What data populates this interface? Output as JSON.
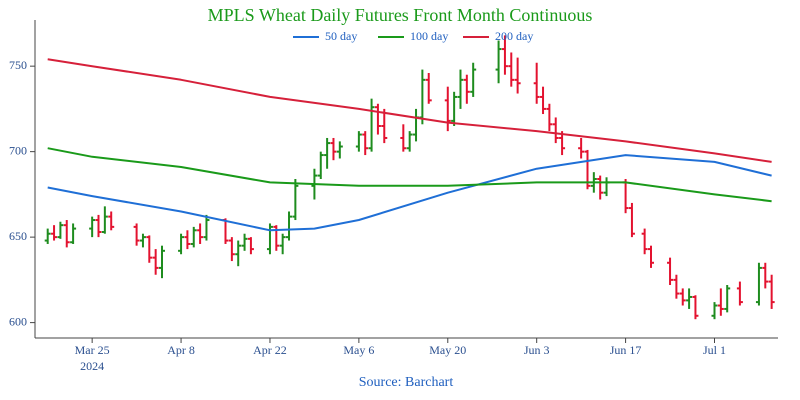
{
  "chart_data": {
    "type": "ohlc",
    "title": "MPLS Wheat Daily Futures Front Month Continuous",
    "source": "Source: Barchart",
    "increasing_color": "#1e8c1e",
    "decreasing_color": "#e3122f",
    "x": [
      "2024-03-18",
      "2024-03-19",
      "2024-03-20",
      "2024-03-21",
      "2024-03-22",
      "2024-03-25",
      "2024-03-26",
      "2024-03-27",
      "2024-03-28",
      "2024-04-01",
      "2024-04-02",
      "2024-04-03",
      "2024-04-04",
      "2024-04-05",
      "2024-04-08",
      "2024-04-09",
      "2024-04-10",
      "2024-04-11",
      "2024-04-12",
      "2024-04-15",
      "2024-04-16",
      "2024-04-17",
      "2024-04-18",
      "2024-04-19",
      "2024-04-22",
      "2024-04-23",
      "2024-04-24",
      "2024-04-25",
      "2024-04-26",
      "2024-04-29",
      "2024-04-30",
      "2024-05-01",
      "2024-05-02",
      "2024-05-03",
      "2024-05-06",
      "2024-05-07",
      "2024-05-08",
      "2024-05-09",
      "2024-05-10",
      "2024-05-13",
      "2024-05-14",
      "2024-05-15",
      "2024-05-16",
      "2024-05-17",
      "2024-05-20",
      "2024-05-21",
      "2024-05-22",
      "2024-05-23",
      "2024-05-24",
      "2024-05-28",
      "2024-05-29",
      "2024-05-30",
      "2024-05-31",
      "2024-06-03",
      "2024-06-04",
      "2024-06-05",
      "2024-06-06",
      "2024-06-07",
      "2024-06-10",
      "2024-06-11",
      "2024-06-12",
      "2024-06-13",
      "2024-06-14",
      "2024-06-17",
      "2024-06-18",
      "2024-06-20",
      "2024-06-21",
      "2024-06-24",
      "2024-06-25",
      "2024-06-26",
      "2024-06-27",
      "2024-06-28",
      "2024-07-01",
      "2024-07-02",
      "2024-07-03",
      "2024-07-05",
      "2024-07-08",
      "2024-07-09",
      "2024-07-10"
    ],
    "open": [
      648,
      652,
      650,
      657,
      647,
      655,
      660,
      653,
      662,
      656,
      648,
      650,
      638,
      632,
      642,
      650,
      646,
      654,
      650,
      660,
      648,
      640,
      645,
      649,
      643,
      656,
      645,
      650,
      662,
      680,
      686,
      698,
      705,
      700,
      703,
      710,
      702,
      726,
      715,
      708,
      702,
      710,
      720,
      742,
      730,
      718,
      732,
      742,
      735,
      748,
      760,
      750,
      742,
      740,
      732,
      725,
      716,
      708,
      702,
      700,
      680,
      684,
      676,
      682,
      667,
      652,
      643,
      635,
      625,
      617,
      613,
      615,
      604,
      610,
      608,
      620,
      612,
      632,
      624
    ],
    "high": [
      655,
      657,
      659,
      660,
      658,
      662,
      663,
      668,
      665,
      658,
      652,
      651,
      643,
      645,
      652,
      654,
      656,
      658,
      663,
      661,
      650,
      648,
      652,
      650,
      658,
      657,
      652,
      665,
      684,
      690,
      700,
      708,
      708,
      706,
      712,
      712,
      731,
      728,
      725,
      716,
      712,
      725,
      748,
      746,
      738,
      735,
      748,
      745,
      752,
      765,
      768,
      758,
      755,
      752,
      738,
      728,
      720,
      712,
      708,
      701,
      688,
      686,
      685,
      684,
      670,
      655,
      645,
      638,
      628,
      620,
      620,
      616,
      612,
      620,
      622,
      624,
      635,
      635,
      628
    ],
    "low": [
      646,
      648,
      649,
      644,
      646,
      650,
      650,
      652,
      654,
      645,
      644,
      635,
      628,
      626,
      640,
      643,
      644,
      646,
      648,
      646,
      636,
      633,
      642,
      640,
      640,
      642,
      640,
      648,
      660,
      672,
      684,
      690,
      695,
      696,
      700,
      698,
      700,
      710,
      705,
      700,
      700,
      706,
      716,
      728,
      712,
      715,
      725,
      728,
      732,
      740,
      745,
      738,
      734,
      728,
      722,
      712,
      705,
      698,
      696,
      678,
      676,
      672,
      674,
      664,
      650,
      640,
      632,
      622,
      614,
      610,
      608,
      602,
      602,
      604,
      606,
      610,
      610,
      620,
      608
    ],
    "close": [
      652,
      650,
      657,
      647,
      655,
      660,
      653,
      662,
      656,
      648,
      650,
      638,
      632,
      642,
      650,
      646,
      654,
      650,
      660,
      648,
      640,
      645,
      649,
      643,
      656,
      645,
      650,
      662,
      680,
      686,
      698,
      705,
      700,
      703,
      710,
      702,
      726,
      715,
      708,
      702,
      710,
      720,
      742,
      730,
      718,
      732,
      742,
      735,
      748,
      760,
      750,
      742,
      740,
      732,
      725,
      716,
      708,
      702,
      700,
      680,
      684,
      676,
      682,
      667,
      652,
      643,
      635,
      625,
      617,
      613,
      615,
      604,
      610,
      608,
      620,
      612,
      632,
      624,
      612
    ],
    "series": [
      {
        "name": "50 day",
        "color": "#1f6fd6",
        "x": [
          "2024-03-18",
          "2024-03-25",
          "2024-04-08",
          "2024-04-22",
          "2024-04-29",
          "2024-05-06",
          "2024-05-20",
          "2024-06-03",
          "2024-06-17",
          "2024-07-01",
          "2024-07-10"
        ],
        "values": [
          679,
          674,
          665,
          654,
          655,
          660,
          676,
          690,
          698,
          694,
          686
        ]
      },
      {
        "name": "100 day",
        "color": "#1a9a1a",
        "x": [
          "2024-03-18",
          "2024-03-25",
          "2024-04-08",
          "2024-04-22",
          "2024-05-06",
          "2024-05-20",
          "2024-06-03",
          "2024-06-17",
          "2024-07-01",
          "2024-07-10"
        ],
        "values": [
          702,
          697,
          691,
          682,
          680,
          680,
          682,
          682,
          675,
          671
        ]
      },
      {
        "name": "200 day",
        "color": "#d6203a",
        "x": [
          "2024-03-18",
          "2024-03-25",
          "2024-04-08",
          "2024-04-22",
          "2024-05-06",
          "2024-05-20",
          "2024-06-03",
          "2024-06-17",
          "2024-07-01",
          "2024-07-10"
        ],
        "values": [
          754,
          750,
          742,
          732,
          725,
          717,
          712,
          706,
          699,
          694
        ]
      }
    ],
    "xlim": [
      "2024-03-16",
      "2024-07-11"
    ],
    "ylim": [
      591,
      777
    ],
    "xticks": [
      {
        "value": "2024-03-25",
        "label": "Mar 25"
      },
      {
        "value": "2024-04-08",
        "label": "Apr 8"
      },
      {
        "value": "2024-04-22",
        "label": "Apr 22"
      },
      {
        "value": "2024-05-06",
        "label": "May 6"
      },
      {
        "value": "2024-05-20",
        "label": "May 20"
      },
      {
        "value": "2024-06-03",
        "label": "Jun 3"
      },
      {
        "value": "2024-06-17",
        "label": "Jun 17"
      },
      {
        "value": "2024-07-01",
        "label": "Jul 1"
      }
    ],
    "x_year_label": "2024",
    "yticks": [
      600,
      650,
      700,
      750
    ],
    "grid": false
  }
}
